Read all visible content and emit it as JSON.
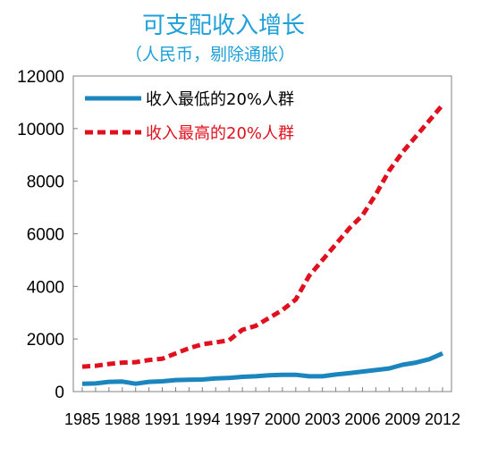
{
  "chart_data": {
    "type": "line",
    "title": "可支配收入增长",
    "subtitle": "（人民币，剔除通胀）",
    "xlabel": "",
    "ylabel": "",
    "x": [
      1985,
      1986,
      1987,
      1988,
      1989,
      1990,
      1991,
      1992,
      1993,
      1994,
      1995,
      1996,
      1997,
      1998,
      1999,
      2000,
      2001,
      2002,
      2003,
      2004,
      2005,
      2006,
      2007,
      2008,
      2009,
      2010,
      2011,
      2012
    ],
    "x_tick_labels": [
      "1985",
      "1988",
      "1991",
      "1994",
      "1997",
      "2000",
      "2003",
      "2006",
      "2009",
      "2012"
    ],
    "y_tick_labels": [
      "0",
      "2000",
      "4000",
      "6000",
      "8000",
      "10000",
      "12000"
    ],
    "ylim": [
      0,
      12000
    ],
    "legend_position": "top-left",
    "grid": false,
    "series": [
      {
        "name": "收入最低的20%人群",
        "color": "#1a86bd",
        "style": "solid",
        "values": [
          300,
          310,
          370,
          380,
          300,
          370,
          390,
          440,
          450,
          460,
          500,
          520,
          560,
          580,
          620,
          640,
          640,
          580,
          580,
          650,
          700,
          760,
          820,
          880,
          1020,
          1100,
          1230,
          1450
        ]
      },
      {
        "name": "收入最高的20%人群",
        "color": "#e0101e",
        "style": "dashed",
        "values": [
          950,
          980,
          1050,
          1100,
          1120,
          1200,
          1250,
          1450,
          1650,
          1800,
          1870,
          1950,
          2350,
          2500,
          2800,
          3100,
          3500,
          4400,
          5000,
          5600,
          6200,
          6700,
          7500,
          8400,
          9100,
          9700,
          10300,
          10900
        ]
      }
    ]
  }
}
